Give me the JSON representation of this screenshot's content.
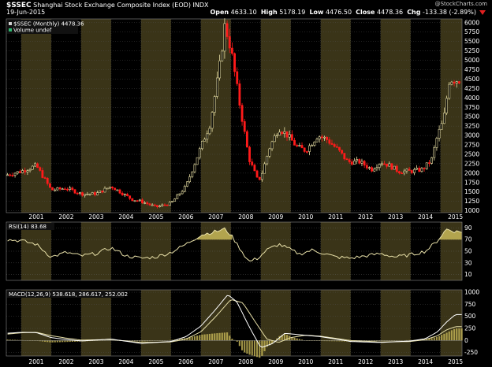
{
  "header": {
    "symbol": "$SSEC",
    "name": "Shanghai Stock Exchange Composite Index (EOD)",
    "exchange": "INDX",
    "brand": "@StockCharts.com",
    "date": "19-Jun-2015",
    "open_label": "Open",
    "open": "4633.10",
    "high_label": "High",
    "high": "5178.19",
    "low_label": "Low",
    "low": "4476.50",
    "close_label": "Close",
    "close": "4478.36",
    "chg_label": "Chg",
    "chg": "-133.38 (-2.89%)"
  },
  "colors": {
    "band": "#3a3418",
    "up": "#e8dfa4",
    "down": "#ff1a1a",
    "line": "#e8e0a8",
    "macd": "#ffffff",
    "fill": "#c8b858",
    "bg": "#000000"
  },
  "chart_data": [
    {
      "type": "candlestick",
      "panel": "price",
      "legend": [
        "$SSEC (Monthly) 4478.36",
        "Volume undef"
      ],
      "x_tick_labels": [
        "2001",
        "2002",
        "2003",
        "2004",
        "2005",
        "2006",
        "2007",
        "2008",
        "2009",
        "2010",
        "2011",
        "2012",
        "2013",
        "2014",
        "2015"
      ],
      "y_tick_labels": [
        "1000",
        "1250",
        "1500",
        "1750",
        "2000",
        "2250",
        "2500",
        "2750",
        "3000",
        "3250",
        "3500",
        "3750",
        "4000",
        "4250",
        "4500",
        "4750",
        "5000",
        "5250",
        "5500",
        "5750",
        "6000"
      ],
      "ylim": [
        950,
        6100
      ],
      "series": [
        {
          "name": "$SSEC",
          "x": [
            2000.5,
            2001.0,
            2001.5,
            2002.0,
            2002.5,
            2003.0,
            2003.5,
            2004.0,
            2004.3,
            2004.7,
            2005.0,
            2005.5,
            2006.0,
            2006.5,
            2007.0,
            2007.3,
            2007.6,
            2007.8,
            2008.0,
            2008.3,
            2008.6,
            2008.9,
            2009.0,
            2009.3,
            2009.6,
            2009.9,
            2010.2,
            2010.5,
            2010.9,
            2011.2,
            2011.6,
            2011.9,
            2012.3,
            2012.7,
            2013.0,
            2013.3,
            2013.6,
            2014.0,
            2014.4,
            2014.7,
            2014.9,
            2015.1,
            2015.3,
            2015.5
          ],
          "close": [
            1950,
            2050,
            2200,
            1550,
            1600,
            1450,
            1450,
            1650,
            1500,
            1300,
            1250,
            1100,
            1200,
            1650,
            2700,
            3300,
            4700,
            5950,
            5300,
            3800,
            2400,
            1800,
            1900,
            2700,
            3200,
            3000,
            2700,
            2600,
            3000,
            2900,
            2600,
            2300,
            2300,
            2100,
            2300,
            2200,
            2050,
            2050,
            2100,
            2350,
            3000,
            3400,
            4500,
            4478
          ]
        }
      ]
    },
    {
      "type": "line",
      "panel": "RSI",
      "legend": [
        "RSI(14) 83.68"
      ],
      "y_tick_labels": [
        "90",
        "70",
        "50",
        "30",
        "10"
      ],
      "ylim": [
        0,
        100
      ],
      "series": [
        {
          "name": "RSI(14)",
          "x": [
            2000.5,
            2001.0,
            2001.5,
            2002.0,
            2002.5,
            2003.0,
            2003.5,
            2004.0,
            2004.5,
            2005.0,
            2005.5,
            2006.0,
            2006.5,
            2007.0,
            2007.5,
            2007.8,
            2008.0,
            2008.3,
            2008.6,
            2008.9,
            2009.2,
            2009.6,
            2009.9,
            2010.3,
            2010.7,
            2011.0,
            2011.5,
            2012.0,
            2012.5,
            2013.0,
            2013.5,
            2014.0,
            2014.5,
            2014.9,
            2015.2,
            2015.5
          ],
          "values": [
            70,
            68,
            62,
            40,
            48,
            42,
            46,
            56,
            42,
            38,
            40,
            48,
            62,
            78,
            84,
            88,
            78,
            55,
            32,
            38,
            52,
            62,
            55,
            45,
            52,
            48,
            40,
            38,
            42,
            46,
            40,
            44,
            50,
            68,
            88,
            83.68
          ]
        }
      ]
    },
    {
      "type": "line",
      "panel": "MACD",
      "legend": [
        "MACD(12,26,9) 538.618, 286.617, 252.002"
      ],
      "y_tick_labels": [
        "1000",
        "750",
        "500",
        "250",
        "0",
        "-250"
      ],
      "ylim": [
        -320,
        1050
      ],
      "series": [
        {
          "name": "MACD",
          "x": [
            2000.5,
            2001.0,
            2001.5,
            2002.0,
            2002.5,
            2003.0,
            2004.0,
            2005.0,
            2006.0,
            2006.5,
            2007.0,
            2007.5,
            2007.9,
            2008.2,
            2008.6,
            2009.0,
            2009.4,
            2009.8,
            2010.3,
            2011.0,
            2012.0,
            2013.0,
            2014.0,
            2014.5,
            2014.9,
            2015.2,
            2015.5
          ],
          "values": [
            150,
            170,
            165,
            60,
            20,
            -10,
            30,
            -60,
            -20,
            80,
            300,
            650,
            950,
            800,
            300,
            -150,
            -60,
            150,
            120,
            80,
            -20,
            -40,
            -10,
            40,
            180,
            380,
            538.618
          ]
        },
        {
          "name": "Signal",
          "x": [
            2000.5,
            2001.0,
            2001.5,
            2002.0,
            2002.5,
            2003.0,
            2004.0,
            2005.0,
            2006.0,
            2006.5,
            2007.0,
            2007.5,
            2008.0,
            2008.4,
            2008.8,
            2009.2,
            2009.6,
            2010.0,
            2010.5,
            2011.0,
            2012.0,
            2013.0,
            2014.0,
            2014.5,
            2014.9,
            2015.2,
            2015.5
          ],
          "values": [
            130,
            160,
            170,
            100,
            50,
            10,
            20,
            -40,
            -30,
            30,
            180,
            500,
            850,
            780,
            400,
            30,
            -40,
            60,
            110,
            90,
            0,
            -30,
            -20,
            20,
            100,
            220,
            286.617
          ]
        }
      ]
    }
  ]
}
